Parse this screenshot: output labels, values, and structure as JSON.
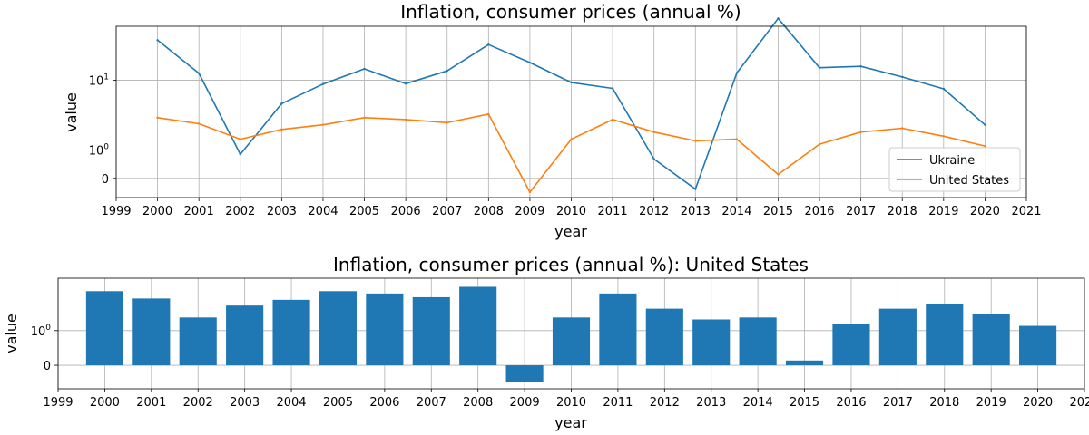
{
  "chart_data": [
    {
      "type": "line",
      "title": "Inflation, consumer prices (annual %)",
      "xlabel": "year",
      "ylabel": "value",
      "yscale": "symlog",
      "xlim": [
        1999,
        2021
      ],
      "ylim": [
        -0.6,
        40
      ],
      "grid": true,
      "legend_position": "lower-right",
      "x": [
        2000,
        2001,
        2002,
        2003,
        2004,
        2005,
        2006,
        2007,
        2008,
        2009,
        2010,
        2011,
        2012,
        2013,
        2014,
        2015,
        2016,
        2017,
        2018,
        2019,
        2020
      ],
      "series": [
        {
          "name": "Ukraine",
          "color": "#1f77b4",
          "values": [
            28.2,
            12.0,
            0.8,
            5.2,
            9.0,
            13.5,
            9.1,
            12.8,
            25.2,
            15.9,
            9.4,
            8.0,
            0.6,
            -0.3,
            12.1,
            48.7,
            13.9,
            14.4,
            10.9,
            7.9,
            2.7
          ]
        },
        {
          "name": "United States",
          "color": "#ff7f0e",
          "values": [
            3.4,
            2.8,
            1.6,
            2.3,
            2.7,
            3.4,
            3.2,
            2.9,
            3.8,
            -0.4,
            1.6,
            3.2,
            2.1,
            1.5,
            1.6,
            0.1,
            1.3,
            2.1,
            2.4,
            1.8,
            1.2
          ]
        }
      ],
      "yticks": [
        "0",
        "10^0",
        "10^1"
      ]
    },
    {
      "type": "bar",
      "title": "Inflation, consumer prices (annual %): United States",
      "xlabel": "year",
      "ylabel": "value",
      "yscale": "symlog",
      "xlim": [
        1999,
        2021
      ],
      "ylim": [
        -0.6,
        4.7
      ],
      "grid": true,
      "color": "#1f77b4",
      "x": [
        2000,
        2001,
        2002,
        2003,
        2004,
        2005,
        2006,
        2007,
        2008,
        2009,
        2010,
        2011,
        2012,
        2013,
        2014,
        2015,
        2016,
        2017,
        2018,
        2019,
        2020
      ],
      "values": [
        3.4,
        2.8,
        1.6,
        2.3,
        2.7,
        3.4,
        3.2,
        2.9,
        3.8,
        -0.4,
        1.6,
        3.2,
        2.1,
        1.5,
        1.6,
        0.1,
        1.3,
        2.1,
        2.4,
        1.8,
        1.2
      ],
      "yticks": [
        "0",
        "10^0"
      ]
    }
  ],
  "xticks": [
    "1999",
    "2000",
    "2001",
    "2002",
    "2003",
    "2004",
    "2005",
    "2006",
    "2007",
    "2008",
    "2009",
    "2010",
    "2011",
    "2012",
    "2013",
    "2014",
    "2015",
    "2016",
    "2017",
    "2018",
    "2019",
    "2020",
    "2021"
  ]
}
